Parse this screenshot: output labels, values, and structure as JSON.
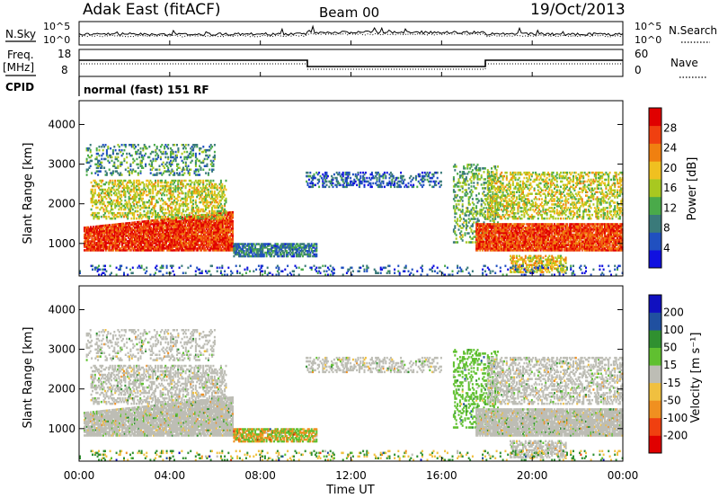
{
  "header": {
    "station": "Adak East (fitACF)",
    "beam": "Beam 00",
    "date": "19/Oct/2013"
  },
  "noise_panel": {
    "left_label": "N.Sky",
    "right_label": "N.Search",
    "tick_top": "10^5",
    "tick_bottom": "10^0"
  },
  "freq_panel": {
    "left_label_1": "Freq.",
    "left_label_2": "[MHz]",
    "left_ticks": [
      "18",
      "8"
    ],
    "right_label": "Nave",
    "right_ticks": [
      "60",
      "0"
    ],
    "cpid_label": "CPID",
    "program_name": "normal (fast) 151 RF"
  },
  "colors": {
    "power_scale": [
      "#1010e0",
      "#2050c0",
      "#3a7a7a",
      "#4aaa4a",
      "#a8c820",
      "#f0c020",
      "#f08010",
      "#f04010",
      "#e00000"
    ],
    "velocity_scale": [
      "#e00000",
      "#f04010",
      "#f09020",
      "#f0c040",
      "#bdbdb5",
      "#60c030",
      "#309030",
      "#2050a0",
      "#1010c0"
    ]
  },
  "chart_data": [
    {
      "type": "heatmap",
      "name": "power",
      "ylabel": "Slant Range [km]",
      "xlabel": "Time UT",
      "x_ticks": [
        "00:00",
        "04:00",
        "08:00",
        "12:00",
        "16:00",
        "20:00",
        "00:00"
      ],
      "xlim_hours": [
        0,
        24
      ],
      "y_ticks": [
        "1000",
        "2000",
        "3000",
        "4000"
      ],
      "ylim_km": [
        180,
        4600
      ],
      "colorbar_label": "Power [dB]",
      "colorbar_ticks": [
        "4",
        "8",
        "12",
        "16",
        "20",
        "24",
        "28"
      ],
      "colorbar_range": [
        0,
        30
      ]
    },
    {
      "type": "heatmap",
      "name": "velocity",
      "ylabel": "Slant Range [km]",
      "xlabel": "Time UT",
      "x_ticks": [
        "00:00",
        "04:00",
        "08:00",
        "12:00",
        "16:00",
        "20:00",
        "00:00"
      ],
      "xlim_hours": [
        0,
        24
      ],
      "y_ticks": [
        "1000",
        "2000",
        "3000",
        "4000"
      ],
      "ylim_km": [
        180,
        4600
      ],
      "colorbar_label": "Velocity [m s⁻¹]",
      "colorbar_ticks": [
        "200",
        "100",
        "50",
        "15",
        "-15",
        "-50",
        "-100",
        "-200"
      ],
      "colorbar_range": [
        -250,
        250
      ]
    }
  ],
  "bottom_axis": {
    "label": "Time UT",
    "ticks": [
      "00:00",
      "04:00",
      "08:00",
      "12:00",
      "16:00",
      "20:00",
      "00:00"
    ]
  }
}
